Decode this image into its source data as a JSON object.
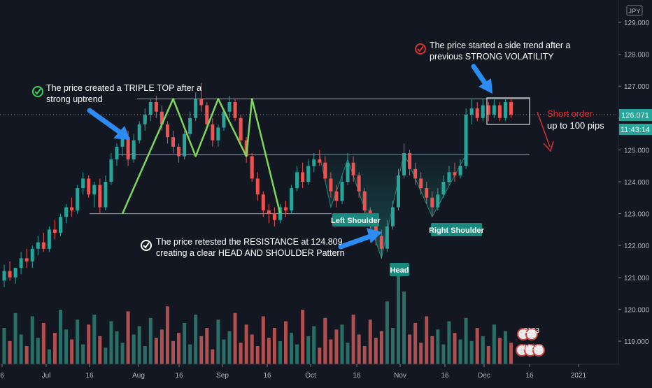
{
  "chart_data": {
    "type": "candlestick",
    "currency_badge": "JPY",
    "y_ticks": [
      "129.000",
      "128.000",
      "127.000",
      "126.000",
      "125.000",
      "124.000",
      "123.000",
      "122.000",
      "121.000",
      "120.000",
      "119.000"
    ],
    "x_ticks": [
      "6",
      "Jul",
      "16",
      "Aug",
      "16",
      "Sep",
      "16",
      "Oct",
      "16",
      "Nov",
      "16",
      "Dec",
      "16",
      "2021"
    ],
    "last_price": "126.071",
    "countdown": "11:43:14",
    "ylim": [
      118.3,
      129.3
    ],
    "grid": false,
    "levels": [
      {
        "name": "resistance-top",
        "value": 126.6
      },
      {
        "name": "neckline",
        "value": 124.85
      },
      {
        "name": "support",
        "value": 123.0
      }
    ],
    "candles": [
      [
        120.9,
        121.4,
        120.7,
        121.2
      ],
      [
        121.2,
        121.5,
        120.9,
        121.0
      ],
      [
        121.0,
        121.3,
        120.8,
        121.3
      ],
      [
        121.3,
        121.8,
        121.1,
        121.6
      ],
      [
        121.6,
        121.9,
        121.3,
        121.5
      ],
      [
        121.5,
        122.0,
        121.3,
        121.9
      ],
      [
        121.9,
        122.3,
        121.7,
        122.1
      ],
      [
        122.1,
        122.4,
        121.8,
        121.9
      ],
      [
        121.9,
        122.6,
        121.8,
        122.5
      ],
      [
        122.5,
        122.8,
        122.2,
        122.4
      ],
      [
        122.4,
        123.0,
        122.3,
        122.9
      ],
      [
        122.9,
        123.3,
        122.7,
        123.2
      ],
      [
        123.2,
        123.5,
        122.9,
        123.1
      ],
      [
        123.1,
        123.9,
        123.0,
        123.8
      ],
      [
        123.8,
        124.3,
        123.6,
        124.1
      ],
      [
        124.1,
        124.2,
        123.5,
        123.6
      ],
      [
        123.6,
        124.0,
        123.2,
        123.9
      ],
      [
        123.9,
        124.1,
        123.0,
        123.2
      ],
      [
        123.2,
        124.2,
        123.1,
        124.0
      ],
      [
        124.0,
        124.9,
        123.9,
        124.7
      ],
      [
        124.7,
        125.2,
        124.5,
        125.1
      ],
      [
        125.1,
        125.6,
        124.8,
        125.4
      ],
      [
        125.4,
        125.6,
        124.5,
        124.7
      ],
      [
        124.7,
        125.5,
        124.6,
        125.3
      ],
      [
        125.3,
        125.9,
        125.2,
        125.8
      ],
      [
        125.8,
        126.3,
        125.6,
        126.1
      ],
      [
        126.1,
        126.6,
        125.9,
        126.5
      ],
      [
        126.5,
        126.7,
        126.0,
        126.2
      ],
      [
        126.2,
        126.4,
        125.6,
        125.8
      ],
      [
        125.8,
        125.9,
        125.2,
        125.4
      ],
      [
        125.4,
        125.6,
        124.9,
        125.1
      ],
      [
        125.1,
        125.2,
        124.6,
        124.8
      ],
      [
        124.8,
        125.6,
        124.7,
        125.5
      ],
      [
        125.5,
        126.2,
        125.4,
        126.0
      ],
      [
        126.0,
        126.8,
        125.9,
        126.6
      ],
      [
        126.6,
        127.1,
        126.2,
        126.4
      ],
      [
        126.4,
        126.5,
        125.6,
        125.8
      ],
      [
        125.8,
        126.0,
        125.1,
        125.3
      ],
      [
        125.3,
        125.8,
        125.1,
        125.7
      ],
      [
        125.7,
        126.3,
        125.6,
        126.2
      ],
      [
        126.2,
        126.7,
        126.0,
        126.5
      ],
      [
        126.5,
        126.6,
        125.9,
        126.0
      ],
      [
        126.0,
        126.1,
        125.2,
        125.3
      ],
      [
        125.3,
        125.4,
        124.6,
        124.8
      ],
      [
        124.8,
        124.9,
        124.0,
        124.1
      ],
      [
        124.1,
        124.3,
        123.4,
        123.6
      ],
      [
        123.6,
        123.7,
        122.9,
        123.1
      ],
      [
        123.1,
        123.3,
        122.7,
        123.0
      ],
      [
        123.0,
        123.2,
        122.6,
        122.8
      ],
      [
        122.8,
        123.3,
        122.7,
        123.2
      ],
      [
        123.2,
        123.4,
        122.9,
        123.1
      ],
      [
        123.1,
        123.9,
        123.0,
        123.8
      ],
      [
        123.8,
        124.5,
        123.7,
        124.3
      ],
      [
        124.3,
        124.6,
        123.8,
        124.0
      ],
      [
        124.0,
        124.7,
        123.9,
        124.5
      ],
      [
        124.5,
        124.9,
        124.3,
        124.7
      ],
      [
        124.7,
        125.0,
        124.5,
        124.6
      ],
      [
        124.6,
        124.8,
        124.0,
        124.1
      ],
      [
        124.1,
        124.3,
        123.5,
        123.7
      ],
      [
        123.7,
        123.9,
        123.2,
        123.4
      ],
      [
        123.4,
        124.2,
        123.3,
        124.0
      ],
      [
        124.0,
        124.9,
        123.9,
        124.6
      ],
      [
        124.6,
        124.8,
        124.0,
        124.2
      ],
      [
        124.2,
        124.3,
        123.5,
        123.7
      ],
      [
        123.7,
        123.8,
        122.9,
        123.1
      ],
      [
        123.1,
        123.2,
        122.4,
        122.6
      ],
      [
        122.6,
        122.9,
        122.0,
        122.3
      ],
      [
        122.3,
        122.5,
        121.6,
        121.9
      ],
      [
        121.9,
        122.8,
        121.8,
        122.6
      ],
      [
        122.6,
        123.4,
        122.5,
        123.2
      ],
      [
        123.2,
        124.4,
        123.1,
        124.2
      ],
      [
        124.2,
        125.2,
        124.1,
        124.9
      ],
      [
        124.9,
        125.0,
        124.2,
        124.4
      ],
      [
        124.4,
        124.6,
        123.9,
        124.1
      ],
      [
        124.1,
        124.3,
        123.6,
        123.8
      ],
      [
        123.8,
        124.0,
        123.3,
        123.5
      ],
      [
        123.5,
        123.7,
        122.9,
        123.2
      ],
      [
        123.2,
        123.8,
        123.1,
        123.6
      ],
      [
        123.6,
        124.2,
        123.5,
        124.0
      ],
      [
        124.0,
        124.5,
        123.9,
        124.3
      ],
      [
        124.3,
        124.6,
        124.0,
        124.2
      ],
      [
        124.2,
        124.7,
        124.1,
        124.5
      ],
      [
        124.5,
        126.3,
        124.4,
        126.1
      ],
      [
        126.1,
        126.6,
        125.8,
        126.3
      ],
      [
        126.3,
        126.5,
        125.9,
        126.0
      ],
      [
        126.0,
        126.6,
        125.9,
        126.4
      ],
      [
        126.4,
        126.5,
        125.9,
        126.1
      ],
      [
        126.1,
        126.6,
        126.0,
        126.4
      ],
      [
        126.4,
        126.5,
        125.9,
        126.0
      ],
      [
        126.0,
        126.6,
        125.9,
        126.5
      ],
      [
        126.5,
        126.6,
        126.0,
        126.1
      ]
    ],
    "volumes": [
      22,
      14,
      31,
      18,
      11,
      29,
      16,
      25,
      9,
      19,
      33,
      21,
      15,
      27,
      12,
      24,
      30,
      17,
      10,
      26,
      20,
      13,
      32,
      18,
      23,
      11,
      28,
      16,
      21,
      35,
      14,
      19,
      25,
      12,
      30,
      17,
      22,
      9,
      27,
      15,
      20,
      31,
      13,
      24,
      18,
      11,
      29,
      16,
      22,
      14,
      26,
      19,
      12,
      33,
      17,
      23,
      10,
      28,
      15,
      21,
      24,
      13,
      30,
      18,
      11,
      27,
      16,
      20,
      38,
      22,
      55,
      44,
      18,
      25,
      13,
      29,
      17,
      21,
      12,
      26,
      19,
      15,
      28,
      14,
      22,
      17,
      11,
      24,
      16,
      20,
      13
    ],
    "annotations": [
      {
        "name": "triple-top-note",
        "text_lines": [
          "The price created a TRIPLE TOP after a",
          "strong uptrend"
        ]
      },
      {
        "name": "resistance-note",
        "text_lines": [
          "The price retested the RESISTANCE at 124.809",
          "creating a clear HEAD AND SHOULDER Pattern"
        ]
      },
      {
        "name": "side-trend-note",
        "text_lines": [
          "The price started a side trend after a",
          "previous STRONG VOLATILITY"
        ]
      }
    ],
    "labels": {
      "left_shoulder": "Left Shoulder",
      "head": "Head",
      "right_shoulder": "Right Shoulder"
    },
    "short_order": {
      "line1": "Short order",
      "line2": "up to 100 pips"
    },
    "bubbles": [
      "2163",
      "23532"
    ],
    "colors": {
      "bg": "#131722",
      "up": "#26a69a",
      "down": "#ef5350",
      "vol_up": "#2a6f67",
      "vol_down": "#b04f4f",
      "label_bg": "#1b8a7e",
      "pattern_line": "#7bd85a",
      "level_line": "#8fa3c7",
      "arrow": "#2b8cf6",
      "short": "#d83030"
    }
  }
}
